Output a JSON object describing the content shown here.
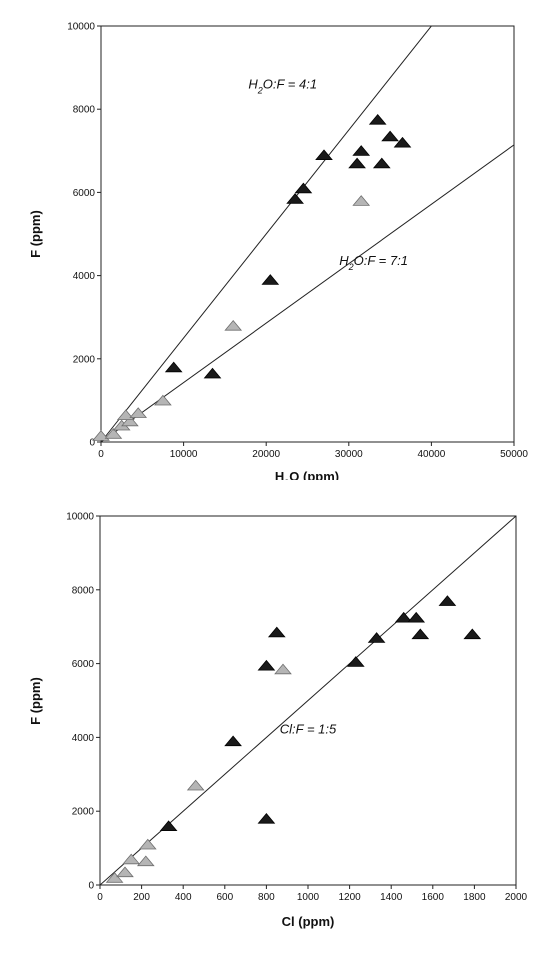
{
  "chart_data": [
    {
      "type": "scatter",
      "xlabel_main": "H",
      "xlabel_sub": "2",
      "xlabel_rest": "O  (ppm)",
      "ylabel": "F  (ppm)",
      "xlim": [
        0,
        50000
      ],
      "ylim": [
        0,
        10000
      ],
      "x_ticks": [
        0,
        10000,
        20000,
        30000,
        40000,
        50000
      ],
      "y_ticks": [
        0,
        2000,
        4000,
        6000,
        8000,
        10000
      ],
      "colors": {
        "dark": "#1a1a1a",
        "light": "#b5b5b5",
        "line": "#222222"
      },
      "series": [
        {
          "marker": "dark-triangle",
          "points": [
            [
              8800,
              1800
            ],
            [
              13500,
              1650
            ],
            [
              20500,
              3900
            ],
            [
              23500,
              5850
            ],
            [
              24500,
              6100
            ],
            [
              27000,
              6900
            ],
            [
              31000,
              6700
            ],
            [
              31500,
              7000
            ],
            [
              33500,
              7750
            ],
            [
              34000,
              6700
            ],
            [
              35000,
              7350
            ],
            [
              36500,
              7200
            ]
          ]
        },
        {
          "marker": "light-triangle",
          "points": [
            [
              0,
              150
            ],
            [
              1500,
              200
            ],
            [
              2500,
              400
            ],
            [
              3500,
              500
            ],
            [
              3000,
              650
            ],
            [
              4500,
              700
            ],
            [
              7500,
              1000
            ],
            [
              16000,
              2800
            ],
            [
              31500,
              5800
            ]
          ]
        }
      ],
      "lines": [
        {
          "slope": 0.25,
          "label_main": "H",
          "label_sub": "2",
          "label_rest": "O:F = 4:1",
          "label_at": [
            22000,
            8500
          ]
        },
        {
          "slope": 0.142857,
          "label_main": "H",
          "label_sub": "2",
          "label_rest": "O:F = 7:1",
          "label_at": [
            33000,
            4250
          ]
        }
      ]
    },
    {
      "type": "scatter",
      "xlabel": "Cl  (ppm)",
      "ylabel": "F  (ppm)",
      "xlim": [
        0,
        2000
      ],
      "ylim": [
        0,
        10000
      ],
      "x_ticks": [
        0,
        200,
        400,
        600,
        800,
        1000,
        1200,
        1400,
        1600,
        1800,
        2000
      ],
      "y_ticks": [
        0,
        2000,
        4000,
        6000,
        8000,
        10000
      ],
      "colors": {
        "dark": "#1a1a1a",
        "light": "#b5b5b5",
        "line": "#222222"
      },
      "series": [
        {
          "marker": "dark-triangle",
          "points": [
            [
              330,
              1600
            ],
            [
              640,
              3900
            ],
            [
              800,
              5950
            ],
            [
              800,
              1800
            ],
            [
              850,
              6850
            ],
            [
              1230,
              6050
            ],
            [
              1330,
              6700
            ],
            [
              1460,
              7250
            ],
            [
              1520,
              7250
            ],
            [
              1540,
              6800
            ],
            [
              1670,
              7700
            ],
            [
              1790,
              6800
            ]
          ]
        },
        {
          "marker": "light-triangle",
          "points": [
            [
              70,
              200
            ],
            [
              120,
              350
            ],
            [
              150,
              700
            ],
            [
              220,
              650
            ],
            [
              230,
              1100
            ],
            [
              460,
              2700
            ],
            [
              880,
              5850
            ]
          ]
        }
      ],
      "lines": [
        {
          "slope": 5,
          "label": "Cl:F = 1:5",
          "label_at": [
            1000,
            4100
          ]
        }
      ]
    }
  ]
}
